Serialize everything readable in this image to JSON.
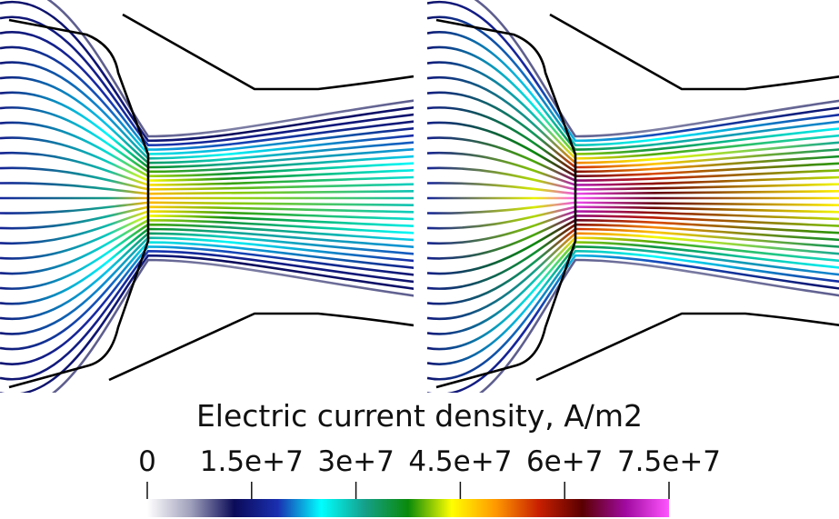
{
  "legend": {
    "title": "Electric current density, A/m2",
    "ticks": [
      "0",
      "1.5e+7",
      "3e+7",
      "4.5e+7",
      "6e+7",
      "7.5e+7"
    ],
    "tick_values": [
      0,
      15000000,
      30000000,
      45000000,
      60000000,
      75000000
    ],
    "range": [
      0,
      75000000
    ],
    "colormap": [
      "#ffffff",
      "#9fa0bb",
      "#0b0b58",
      "#1a2fb0",
      "#00ffff",
      "#15a08a",
      "#0a8a0a",
      "#ffff00",
      "#ff9a00",
      "#c82000",
      "#5a0000",
      "#a00aa0",
      "#ff55ff"
    ]
  },
  "panels": [
    {
      "label": "left-panel",
      "peak_density_fraction": 0.65
    },
    {
      "label": "right-panel",
      "peak_density_fraction": 1.0
    }
  ]
}
